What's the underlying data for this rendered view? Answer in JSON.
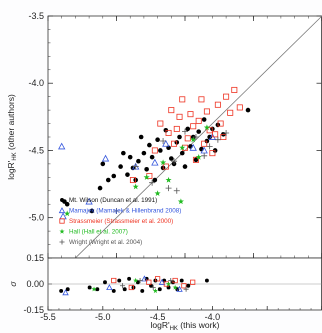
{
  "chart_data": [
    {
      "type": "scatter",
      "panel": "main",
      "xlim": [
        -5.5,
        -3.5
      ],
      "ylim": [
        -5.3,
        -3.5
      ],
      "x_ticks": [
        -5.5,
        -5.0,
        -4.5,
        -4.0,
        -3.5
      ],
      "y_ticks": [
        -3.5,
        -4.0,
        -4.5,
        -5.0
      ],
      "y_tick_labels": [
        "-3.5",
        "-4.0",
        "-4.5",
        "-5.0"
      ],
      "ylabel": "logR'HK (other authors)",
      "ylabel_parts": {
        "main": "logR'",
        "sub": "HK",
        "rest": " (other authors)"
      },
      "reference_line": "y = x",
      "grid": false,
      "legend": {
        "placement": "lower-left",
        "entries": [
          {
            "label": "Mt. Wilson (Duncan et al. 1991)",
            "marker": "filled-circle",
            "color": "#000000"
          },
          {
            "label": "Mamajek (Mamajek & Hillenbrand 2008)",
            "marker": "open-triangle",
            "color": "#3355dd"
          },
          {
            "label": "Strassmeier (Strassmeier et al. 2000)",
            "marker": "open-square",
            "color": "#ee3322"
          },
          {
            "label": "Hall (Hall et al. 2007)",
            "marker": "filled-star",
            "color": "#22bb22"
          },
          {
            "label": "Wright (Wright et al. 2004)",
            "marker": "plus",
            "color": "#555555"
          }
        ]
      },
      "series": [
        {
          "name": "Mt. Wilson (Duncan et al. 1991)",
          "marker": "filled-circle",
          "color": "#000000",
          "points": [
            [
              -5.38,
              -4.88
            ],
            [
              -5.36,
              -4.9
            ],
            [
              -5.18,
              -4.95
            ],
            [
              -5.12,
              -4.78
            ],
            [
              -5.1,
              -4.6
            ],
            [
              -5.06,
              -4.72
            ],
            [
              -5.02,
              -4.69
            ],
            [
              -4.97,
              -4.62
            ],
            [
              -4.95,
              -4.52
            ],
            [
              -4.92,
              -4.68
            ],
            [
              -4.9,
              -4.55
            ],
            [
              -4.88,
              -4.63
            ],
            [
              -4.86,
              -4.72
            ],
            [
              -4.84,
              -4.58
            ],
            [
              -4.82,
              -4.4
            ],
            [
              -4.8,
              -4.52
            ],
            [
              -4.78,
              -4.64
            ],
            [
              -4.76,
              -4.46
            ],
            [
              -4.74,
              -4.55
            ],
            [
              -4.72,
              -4.72
            ],
            [
              -4.7,
              -4.42
            ],
            [
              -4.68,
              -4.5
            ],
            [
              -4.66,
              -4.63
            ],
            [
              -4.64,
              -4.35
            ],
            [
              -4.62,
              -4.48
            ],
            [
              -4.6,
              -4.56
            ],
            [
              -4.58,
              -4.6
            ],
            [
              -4.56,
              -4.44
            ],
            [
              -4.54,
              -4.4
            ],
            [
              -4.52,
              -4.52
            ],
            [
              -4.5,
              -4.62
            ],
            [
              -4.48,
              -4.34
            ],
            [
              -4.46,
              -4.47
            ],
            [
              -4.44,
              -4.4
            ],
            [
              -4.42,
              -4.57
            ],
            [
              -4.4,
              -4.36
            ],
            [
              -4.38,
              -4.49
            ],
            [
              -4.36,
              -4.27
            ],
            [
              -4.34,
              -4.43
            ],
            [
              -4.32,
              -4.4
            ],
            [
              -4.3,
              -4.34
            ],
            [
              -4.28,
              -4.5
            ],
            [
              -4.26,
              -4.31
            ],
            [
              -4.22,
              -4.38
            ],
            [
              -4.04,
              -4.2
            ]
          ]
        },
        {
          "name": "Mamajek (Mamajek & Hillenbrand 2008)",
          "marker": "open-triangle",
          "color": "#3355dd",
          "points": [
            [
              -5.4,
              -4.47
            ],
            [
              -5.39,
              -4.99
            ],
            [
              -5.2,
              -4.88
            ],
            [
              -5.08,
              -4.56
            ],
            [
              -4.86,
              -4.62
            ],
            [
              -4.72,
              -4.59
            ],
            [
              -4.64,
              -4.45
            ],
            [
              -4.44,
              -4.48
            ],
            [
              -4.36,
              -4.5
            ],
            [
              -4.3,
              -4.4
            ]
          ]
        },
        {
          "name": "Strassmeier (Strassmeier et al. 2000)",
          "marker": "open-square",
          "color": "#ee3322",
          "points": [
            [
              -4.88,
              -4.72
            ],
            [
              -4.76,
              -4.69
            ],
            [
              -4.72,
              -4.5
            ],
            [
              -4.68,
              -4.3
            ],
            [
              -4.64,
              -4.62
            ],
            [
              -4.62,
              -4.37
            ],
            [
              -4.6,
              -4.2
            ],
            [
              -4.58,
              -4.45
            ],
            [
              -4.56,
              -4.34
            ],
            [
              -4.54,
              -4.25
            ],
            [
              -4.52,
              -4.12
            ],
            [
              -4.5,
              -4.48
            ],
            [
              -4.48,
              -4.41
            ],
            [
              -4.46,
              -4.23
            ],
            [
              -4.44,
              -4.32
            ],
            [
              -4.42,
              -4.57
            ],
            [
              -4.4,
              -4.28
            ],
            [
              -4.38,
              -4.12
            ],
            [
              -4.36,
              -4.45
            ],
            [
              -4.34,
              -4.21
            ],
            [
              -4.32,
              -4.35
            ],
            [
              -4.3,
              -4.52
            ],
            [
              -4.28,
              -4.38
            ],
            [
              -4.26,
              -4.16
            ],
            [
              -4.24,
              -4.3
            ],
            [
              -4.22,
              -4.4
            ],
            [
              -4.2,
              -4.1
            ],
            [
              -4.17,
              -4.22
            ],
            [
              -4.14,
              -4.05
            ],
            [
              -4.1,
              -4.18
            ]
          ]
        },
        {
          "name": "Hall (Hall et al. 2007)",
          "marker": "filled-star",
          "color": "#22bb22",
          "points": [
            [
              -5.36,
              -4.97
            ],
            [
              -4.86,
              -4.77
            ],
            [
              -4.78,
              -4.7
            ],
            [
              -4.7,
              -4.82
            ],
            [
              -4.66,
              -4.59
            ],
            [
              -4.62,
              -4.72
            ],
            [
              -4.52,
              -4.48
            ],
            [
              -4.44,
              -4.42
            ],
            [
              -4.4,
              -4.55
            ],
            [
              -4.34,
              -4.33
            ],
            [
              -4.53,
              -4.88
            ]
          ]
        },
        {
          "name": "Wright (Wright et al. 2004)",
          "marker": "plus",
          "color": "#555555",
          "points": [
            [
              -5.0,
              -4.95
            ],
            [
              -4.86,
              -4.62
            ],
            [
              -4.74,
              -4.74
            ],
            [
              -4.66,
              -4.43
            ],
            [
              -4.58,
              -4.58
            ],
            [
              -4.5,
              -4.36
            ],
            [
              -4.42,
              -4.4
            ],
            [
              -4.36,
              -4.54
            ],
            [
              -4.32,
              -4.47
            ],
            [
              -4.26,
              -4.42
            ],
            [
              -4.2,
              -4.37
            ],
            [
              -4.56,
              -4.8
            ],
            [
              -4.62,
              -4.78
            ]
          ]
        }
      ]
    },
    {
      "type": "scatter",
      "panel": "residuals",
      "xlim": [
        -5.5,
        -3.0
      ],
      "ylim": [
        -0.15,
        0.15
      ],
      "x_ticks": [
        -5.5,
        -5.0,
        -4.5,
        -4.0,
        -3.5,
        -3.0
      ],
      "x_tick_labels": [
        "-5.5",
        "-5.0",
        "-4.5",
        "-4.0",
        "",
        ""
      ],
      "y_ticks": [
        0.15,
        0.0,
        -0.15
      ],
      "y_tick_labels": [
        "0.15",
        "0.00",
        "-0.15"
      ],
      "xlabel": "logR'HK (this work)",
      "xlabel_parts": {
        "main": "logR'",
        "sub": "HK",
        "rest": " (this work)"
      },
      "ylabel": "σ",
      "reference_lines": [
        0.0
      ],
      "series": [
        {
          "name": "Mt. Wilson (Duncan et al. 1991)",
          "marker": "filled-circle",
          "color": "#000000",
          "points": [
            [
              -5.38,
              -0.04
            ],
            [
              -5.32,
              -0.03
            ],
            [
              -5.12,
              -0.02
            ],
            [
              -5.05,
              -0.03
            ],
            [
              -4.98,
              0.01
            ],
            [
              -4.9,
              -0.04
            ],
            [
              -4.85,
              0.02
            ],
            [
              -4.8,
              -0.03
            ],
            [
              -4.76,
              0.03
            ],
            [
              -4.72,
              -0.02
            ],
            [
              -4.68,
              0.01
            ],
            [
              -4.64,
              -0.04
            ],
            [
              -4.6,
              0.03
            ],
            [
              -4.56,
              -0.01
            ],
            [
              -4.52,
              0.02
            ],
            [
              -4.48,
              -0.03
            ],
            [
              -4.44,
              0.02
            ],
            [
              -4.4,
              -0.02
            ],
            [
              -4.36,
              0.01
            ],
            [
              -4.32,
              -0.03
            ],
            [
              -4.28,
              0.02
            ],
            [
              -4.22,
              -0.01
            ],
            [
              -4.05,
              0.02
            ]
          ]
        },
        {
          "name": "Mamajek (Mamajek & Hillenbrand 2008)",
          "marker": "open-triangle",
          "color": "#3355dd",
          "points": [
            [
              -5.34,
              -0.05
            ],
            [
              -4.94,
              -0.02
            ],
            [
              -4.62,
              0.03
            ],
            [
              -4.46,
              0.01
            ],
            [
              -4.3,
              -0.03
            ]
          ]
        },
        {
          "name": "Strassmeier (Strassmeier et al. 2000)",
          "marker": "open-square",
          "color": "#ee3322",
          "points": [
            [
              -4.9,
              0.02
            ],
            [
              -4.74,
              -0.02
            ],
            [
              -4.58,
              0.01
            ],
            [
              -4.5,
              0.03
            ],
            [
              -4.42,
              0.0
            ],
            [
              -4.34,
              0.02
            ],
            [
              -4.26,
              -0.01
            ],
            [
              -4.18,
              0.01
            ]
          ]
        },
        {
          "name": "Hall (Hall et al. 2007)",
          "marker": "filled-star",
          "color": "#22bb22",
          "points": [
            [
              -5.08,
              -0.03
            ],
            [
              -4.7,
              0.02
            ],
            [
              -4.52,
              -0.04
            ],
            [
              -4.4,
              0.0
            ],
            [
              -4.34,
              -0.02
            ]
          ]
        },
        {
          "name": "Wright (Wright et al. 2004)",
          "marker": "plus",
          "color": "#555555",
          "points": [
            [
              -4.82,
              -0.01
            ],
            [
              -4.66,
              0.02
            ],
            [
              -4.54,
              -0.02
            ],
            [
              -4.38,
              0.02
            ],
            [
              -4.24,
              -0.03
            ]
          ]
        }
      ]
    }
  ]
}
